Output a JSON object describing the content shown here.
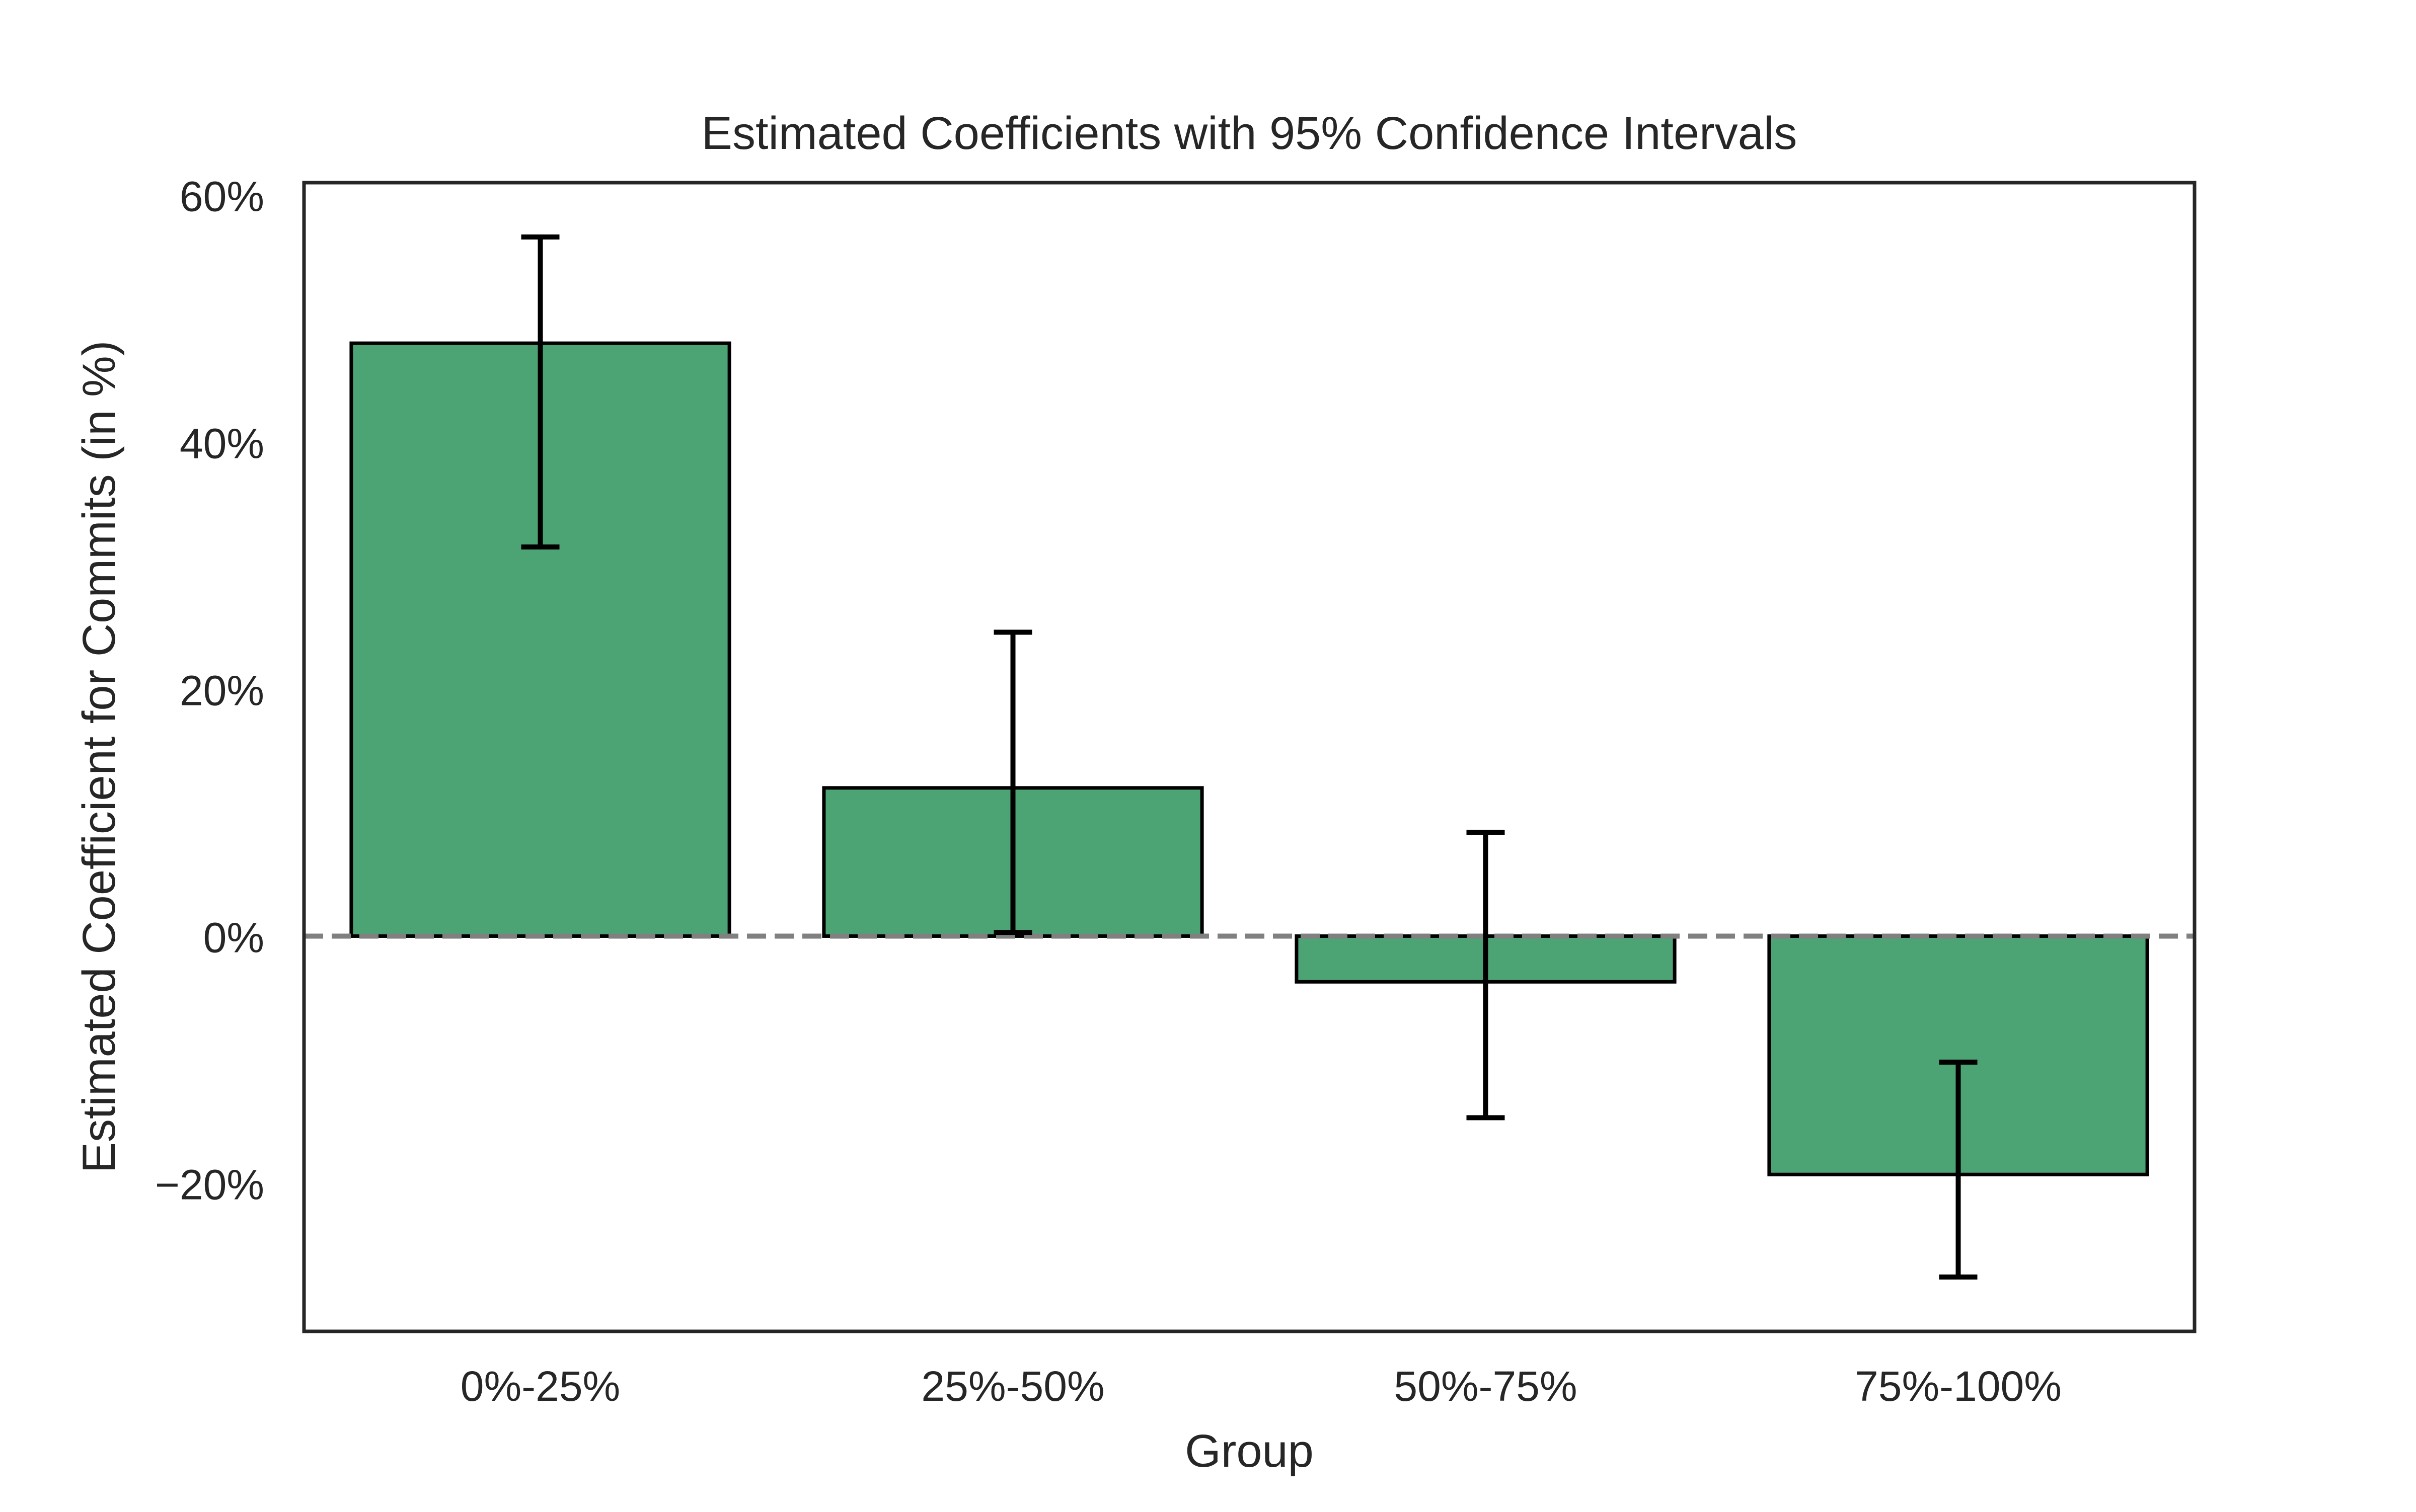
{
  "chart_data": {
    "type": "bar",
    "title": "Estimated Coefficients with 95% Confidence Intervals",
    "xlabel": "Group",
    "ylabel": "Estimated Coefficient for Commits (in %)",
    "categories": [
      "0%-25%",
      "25%-50%",
      "50%-75%",
      "75%-100%"
    ],
    "values": [
      48.0,
      12.0,
      -3.7,
      -19.3
    ],
    "ci_lower": [
      31.5,
      0.3,
      -14.7,
      -27.6
    ],
    "ci_upper": [
      56.6,
      24.6,
      8.4,
      -10.2
    ],
    "ylim": [
      -32,
      61
    ],
    "yticks": [
      -20,
      0,
      20,
      40,
      60
    ],
    "ytick_labels": [
      "−20%",
      "0%",
      "20%",
      "40%",
      "60%"
    ],
    "reference_line": {
      "y": 0,
      "style": "dashed",
      "color": "#808080"
    },
    "grid": false,
    "bar_color": "#4ca474",
    "bar_edge_color": "#000000",
    "errorbar_color": "#000000"
  }
}
